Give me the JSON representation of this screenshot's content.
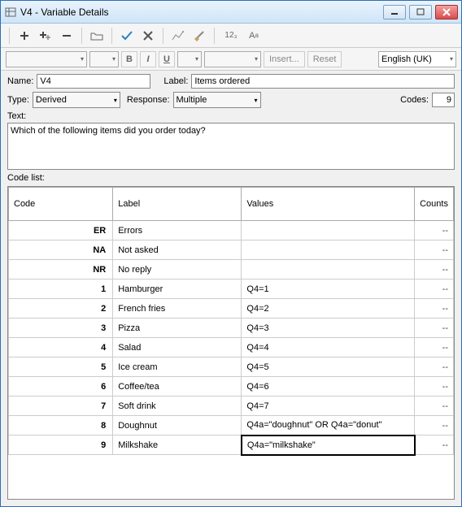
{
  "window": {
    "title": "V4 - Variable Details"
  },
  "toolbar": {
    "icons": [
      "plus",
      "plus-multi",
      "minus",
      "folder",
      "check",
      "cross",
      "chart",
      "brush",
      "number",
      "text"
    ]
  },
  "format": {
    "bold": "B",
    "italic": "I",
    "underline": "U",
    "insert": "Insert...",
    "reset": "Reset",
    "language": "English (UK)"
  },
  "form": {
    "name_label": "Name:",
    "name_value": "V4",
    "label_label": "Label:",
    "label_value": "Items ordered",
    "type_label": "Type:",
    "type_value": "Derived",
    "response_label": "Response:",
    "response_value": "Multiple",
    "codes_label": "Codes:",
    "codes_value": "9",
    "text_label": "Text:",
    "text_value": "Which of the following items did you order today?",
    "codelist_label": "Code list:"
  },
  "grid": {
    "columns": {
      "code": "Code",
      "label": "Label",
      "values": "Values",
      "counts": "Counts"
    },
    "col_widths": {
      "code": 130,
      "label": 160,
      "values": 215,
      "counts": 45
    },
    "rows": [
      {
        "code": "ER",
        "label": "Errors",
        "values": "",
        "counts": "--"
      },
      {
        "code": "NA",
        "label": "Not asked",
        "values": "",
        "counts": "--"
      },
      {
        "code": "NR",
        "label": "No reply",
        "values": "",
        "counts": "--"
      },
      {
        "code": "1",
        "label": "Hamburger",
        "values": "Q4=1",
        "counts": "--"
      },
      {
        "code": "2",
        "label": "French fries",
        "values": "Q4=2",
        "counts": "--"
      },
      {
        "code": "3",
        "label": "Pizza",
        "values": "Q4=3",
        "counts": "--"
      },
      {
        "code": "4",
        "label": "Salad",
        "values": "Q4=4",
        "counts": "--"
      },
      {
        "code": "5",
        "label": "Ice cream",
        "values": "Q4=5",
        "counts": "--"
      },
      {
        "code": "6",
        "label": "Coffee/tea",
        "values": "Q4=6",
        "counts": "--"
      },
      {
        "code": "7",
        "label": "Soft drink",
        "values": "Q4=7",
        "counts": "--"
      },
      {
        "code": "8",
        "label": "Doughnut",
        "values": "Q4a=\"doughnut\" OR Q4a=\"donut\"",
        "counts": "--"
      },
      {
        "code": "9",
        "label": "Milkshake",
        "values": "Q4a=\"milkshake\"",
        "counts": "--",
        "highlight": true
      }
    ]
  },
  "colors": {
    "titlebar_start": "#eaf3fc",
    "titlebar_end": "#cfe5f8",
    "border": "#2a6fb5",
    "check": "#2a7fc0",
    "cross": "#555",
    "close": "#d94b4b"
  }
}
